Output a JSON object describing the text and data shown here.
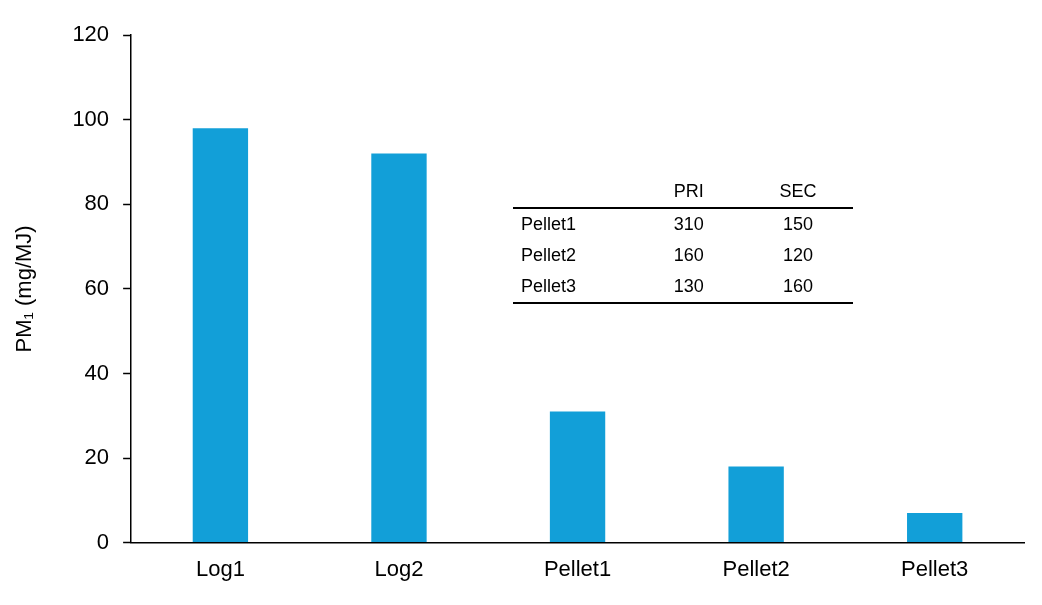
{
  "chart_data": {
    "type": "bar",
    "ylabel": "PM₁ (mg/MJ)",
    "categories": [
      "Log1",
      "Log2",
      "Pellet1",
      "Pellet2",
      "Pellet3"
    ],
    "values": [
      98,
      92,
      31,
      18,
      7
    ],
    "color": "#129fd8",
    "ylim": [
      0,
      120
    ],
    "yticks": [
      0,
      20,
      40,
      60,
      80,
      100,
      120
    ],
    "grid": false,
    "legend": false,
    "annotations": [
      "PRI",
      "SEC",
      "Pellet1",
      "310",
      "150",
      "Pellet2",
      "160",
      "120",
      "Pellet3",
      "130",
      "160"
    ]
  }
}
